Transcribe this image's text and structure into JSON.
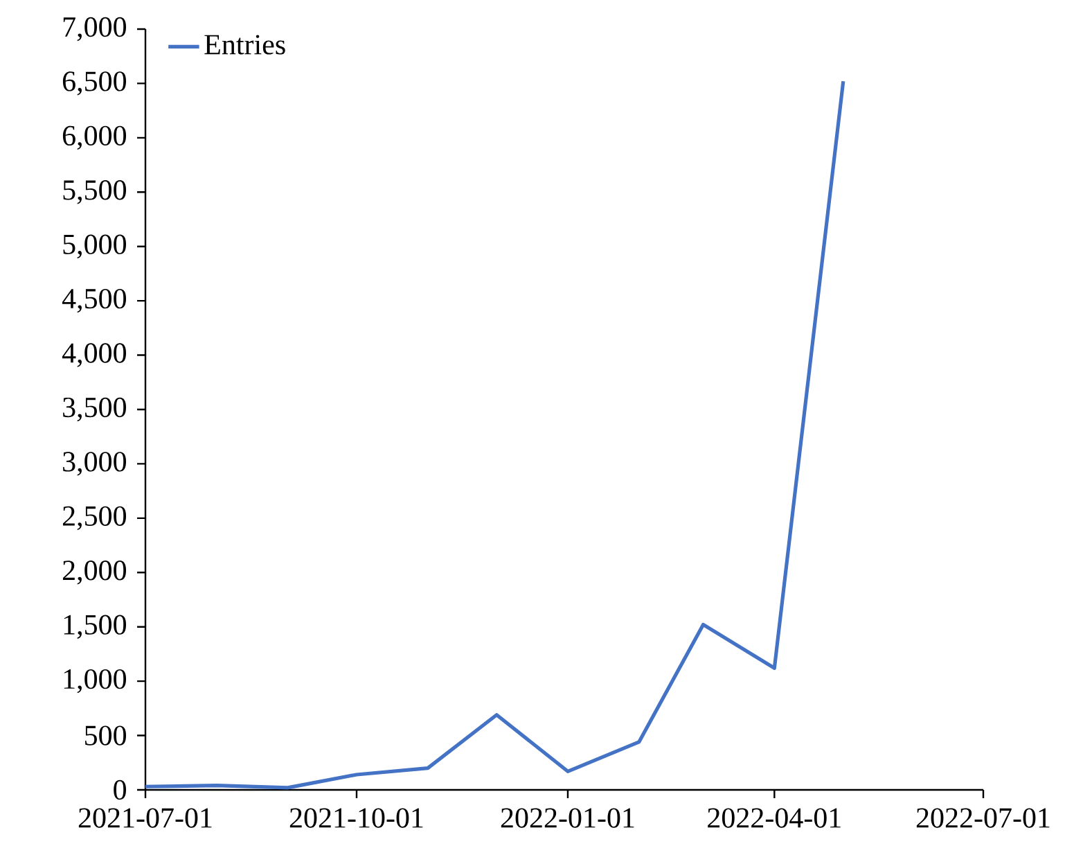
{
  "chart_data": {
    "type": "line",
    "x": [
      "2021-07-01",
      "2021-08-01",
      "2021-09-01",
      "2021-10-01",
      "2021-11-01",
      "2021-12-01",
      "2022-01-01",
      "2022-02-01",
      "2022-03-01",
      "2022-04-01",
      "2022-05-01"
    ],
    "series": [
      {
        "name": "Entries",
        "color": "#4472c4",
        "values": [
          30,
          40,
          20,
          140,
          200,
          690,
          170,
          440,
          1520,
          1120,
          6520
        ]
      }
    ],
    "xlim": [
      "2021-07-01",
      "2022-07-01"
    ],
    "xticks": [
      "2021-07-01",
      "2021-10-01",
      "2022-01-01",
      "2022-04-01",
      "2022-07-01"
    ],
    "ylim": [
      0,
      7000
    ],
    "yticks": [
      0,
      500,
      {
        "value": 1000,
        "label": "1,000"
      },
      {
        "value": 1500,
        "label": "1,500"
      },
      {
        "value": 2000,
        "label": "2,000"
      },
      {
        "value": 2500,
        "label": "2,500"
      },
      {
        "value": 3000,
        "label": "3,000"
      },
      {
        "value": 3500,
        "label": "3,500"
      },
      {
        "value": 4000,
        "label": "4,000"
      },
      {
        "value": 4500,
        "label": "4,500"
      },
      {
        "value": 5000,
        "label": "5,000"
      },
      {
        "value": 5500,
        "label": "5,500"
      },
      {
        "value": 6000,
        "label": "6,000"
      },
      {
        "value": 6500,
        "label": "6,500"
      },
      {
        "value": 7000,
        "label": "7,000"
      }
    ],
    "grid": false,
    "legend": "top left",
    "marker": "none",
    "line_style": "solid"
  }
}
